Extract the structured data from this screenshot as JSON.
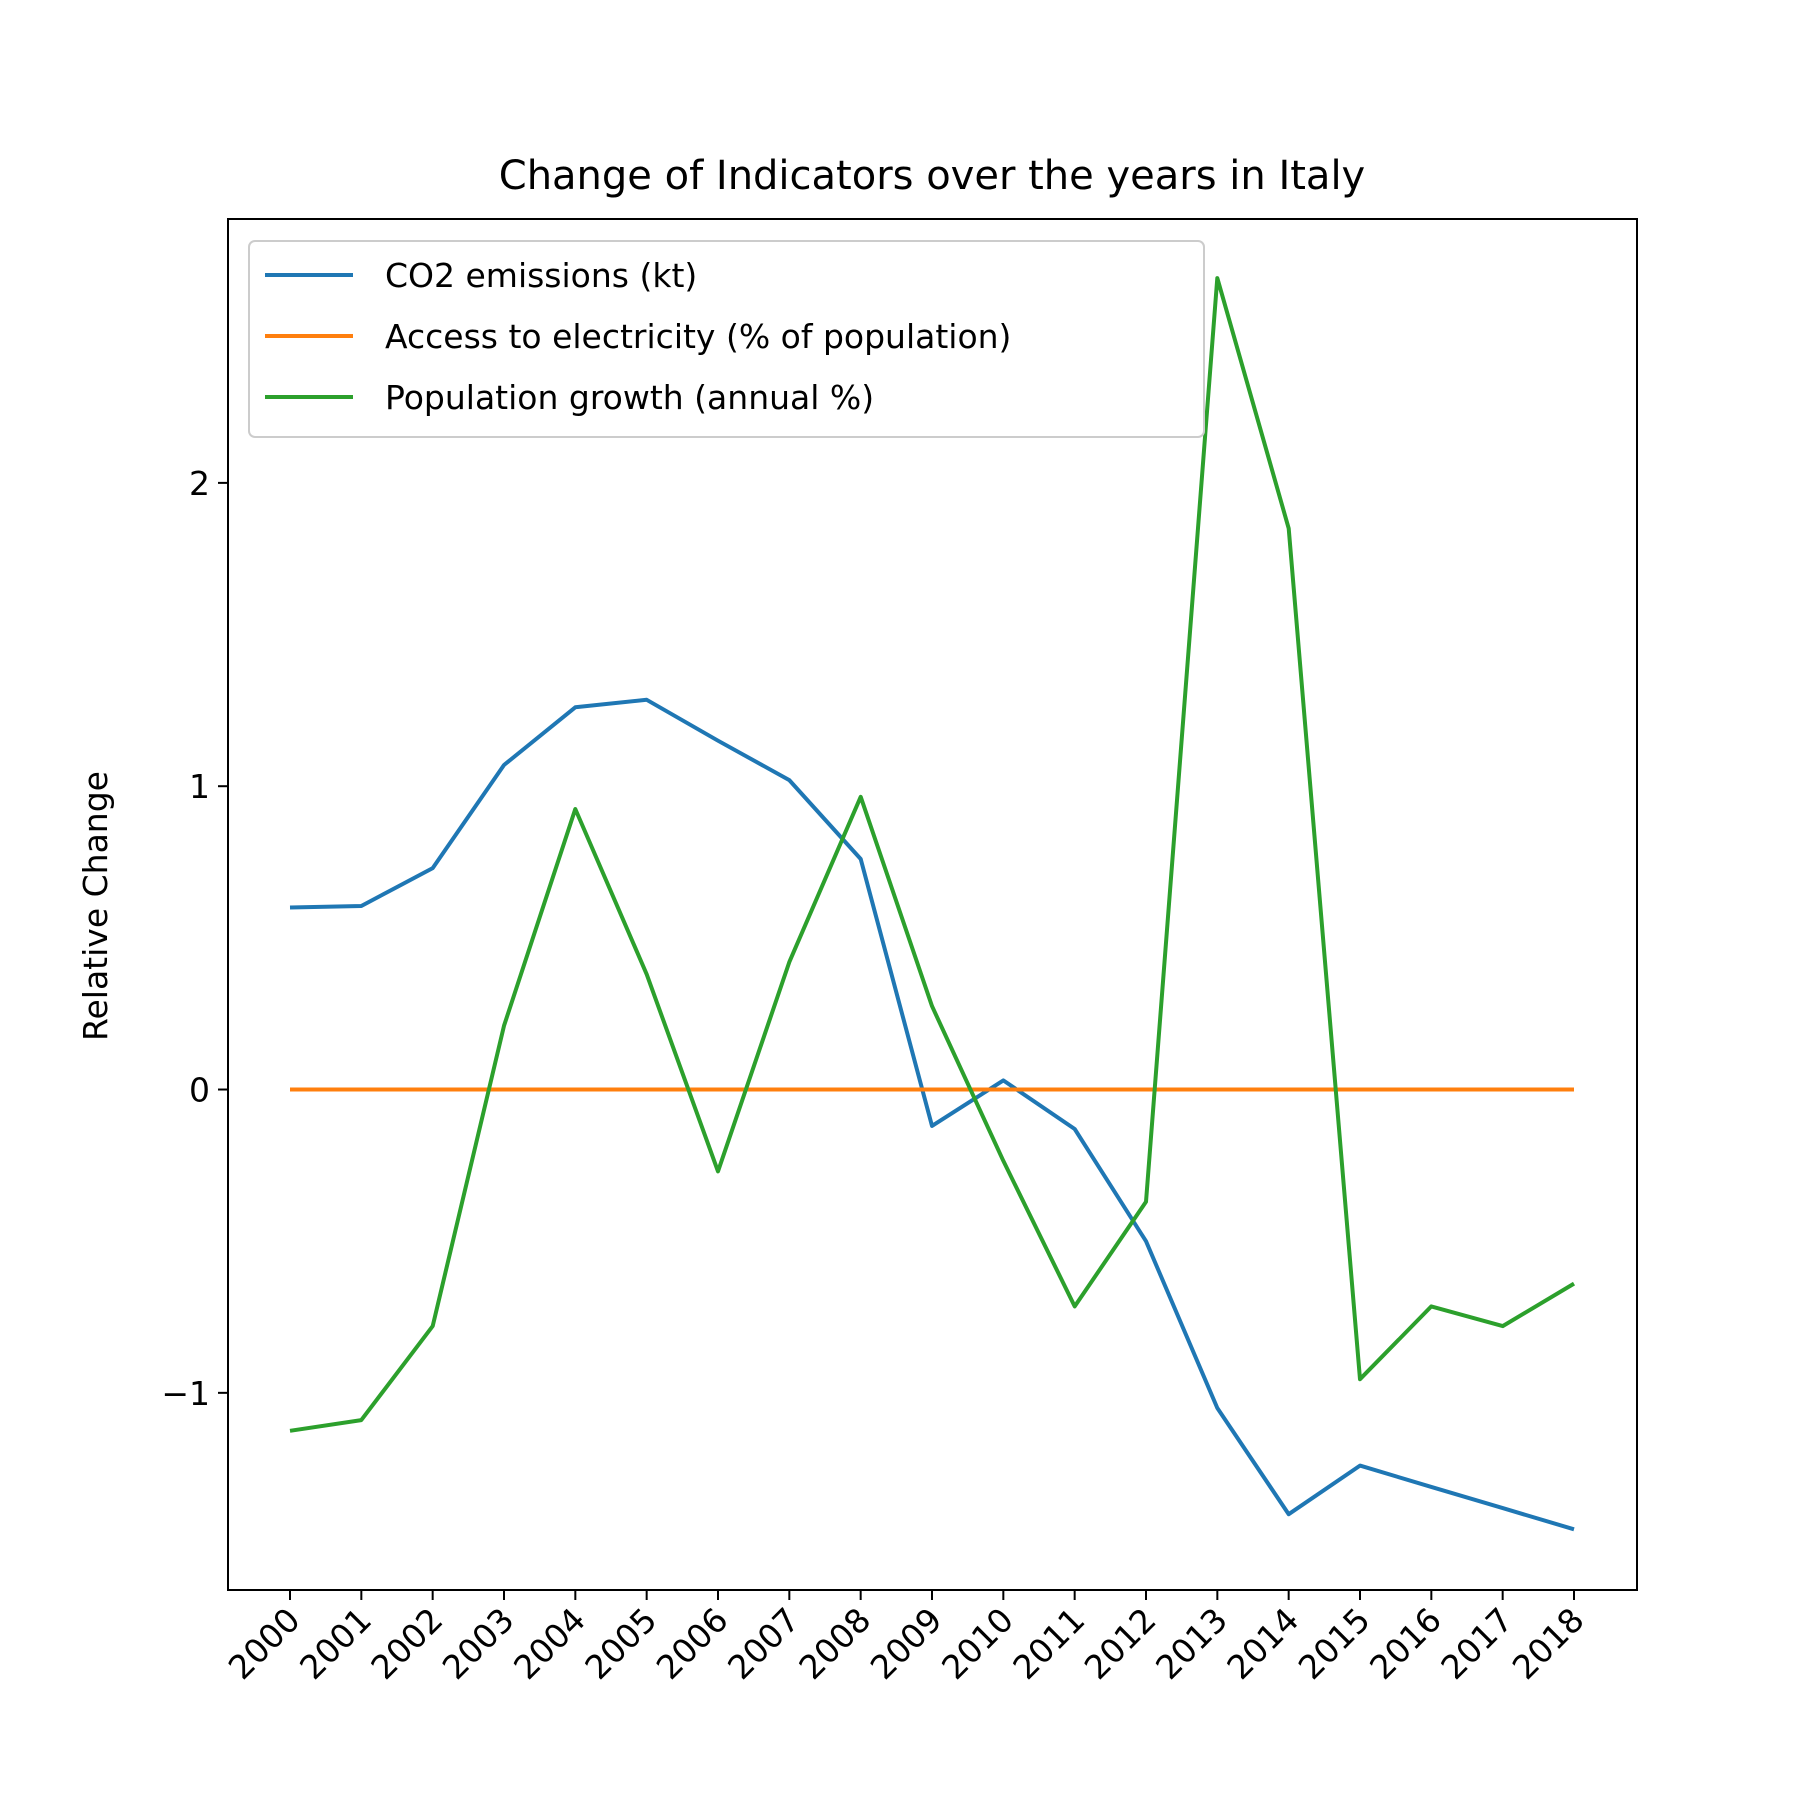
{
  "chart_data": {
    "type": "line",
    "title": "Change of Indicators over the years in Italy",
    "xlabel": "",
    "ylabel": "Relative Change",
    "categories": [
      "2000",
      "2001",
      "2002",
      "2003",
      "2004",
      "2005",
      "2006",
      "2007",
      "2008",
      "2009",
      "2010",
      "2011",
      "2012",
      "2013",
      "2014",
      "2015",
      "2016",
      "2017",
      "2018"
    ],
    "yticks": [
      {
        "value": -1,
        "label": "−1"
      },
      {
        "value": 0,
        "label": "0"
      },
      {
        "value": 1,
        "label": "1"
      },
      {
        "value": 2,
        "label": "2"
      }
    ],
    "ylim": [
      -1.65,
      2.87
    ],
    "grid": false,
    "legend_position": "top-left",
    "series": [
      {
        "name": "CO2 emissions (kt)",
        "color": "#1f77b4",
        "values": [
          0.6,
          0.605,
          0.73,
          1.07,
          1.26,
          1.285,
          1.15,
          1.02,
          0.76,
          -0.12,
          0.03,
          -0.13,
          -0.5,
          -1.05,
          -1.4,
          -1.24,
          -1.31,
          -1.38,
          -1.45
        ]
      },
      {
        "name": "Access to electricity (% of population)",
        "color": "#ff7f0e",
        "values": [
          0,
          0,
          0,
          0,
          0,
          0,
          0,
          0,
          0,
          0,
          0,
          0,
          0,
          0,
          0,
          0,
          0,
          0,
          0
        ]
      },
      {
        "name": "Population growth (annual %)",
        "color": "#2ca02c",
        "values": [
          -1.125,
          -1.09,
          -0.78,
          0.21,
          0.925,
          0.38,
          -0.27,
          0.42,
          0.965,
          0.275,
          -0.235,
          -0.715,
          -0.37,
          2.675,
          1.85,
          -0.955,
          -0.715,
          -0.78,
          -0.64
        ]
      }
    ]
  }
}
